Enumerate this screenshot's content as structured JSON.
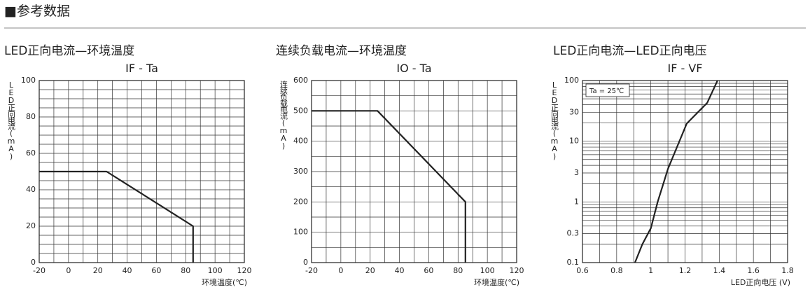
{
  "header": {
    "title": "■参考数据"
  },
  "chart_data": [
    {
      "type": "line",
      "title": "LED正向电流—环境温度",
      "subtitle": "IF - Ta",
      "ylabel": "LED正向电流(mA)",
      "xlabel": "环境温度(℃)",
      "x": [
        -20,
        26,
        85,
        85
      ],
      "series": [
        {
          "color": "#222222",
          "values": [
            50,
            50,
            20,
            0
          ]
        }
      ],
      "xlim": [
        -20,
        120
      ],
      "ylim": [
        0,
        100
      ],
      "xticks": [
        -20,
        0,
        20,
        40,
        60,
        80,
        100,
        120
      ],
      "yticks": [
        0,
        20,
        40,
        60,
        80,
        100
      ],
      "grid": true,
      "xgrid": [
        -10,
        10,
        30,
        50,
        70,
        90,
        110
      ],
      "ygrid": [
        5,
        10,
        15,
        25,
        30,
        35,
        45,
        50,
        55,
        65,
        70,
        75,
        85,
        90,
        95
      ]
    },
    {
      "type": "line",
      "title": "连续负载电流—环境温度",
      "subtitle": "IO - Ta",
      "ylabel": "连续负载电流(mA)",
      "xlabel": "环境温度(℃)",
      "x": [
        -20,
        25,
        85,
        85
      ],
      "series": [
        {
          "color": "#222222",
          "values": [
            500,
            500,
            200,
            0
          ]
        }
      ],
      "xlim": [
        -20,
        120
      ],
      "ylim": [
        0,
        600
      ],
      "xticks": [
        -20,
        0,
        20,
        40,
        60,
        80,
        100,
        120
      ],
      "yticks": [
        0,
        100,
        200,
        300,
        400,
        500,
        600
      ],
      "grid": true,
      "xgrid": [
        -10,
        10,
        30,
        50,
        70,
        90,
        110
      ],
      "ygrid": [
        50,
        150,
        250,
        350,
        450,
        550
      ]
    },
    {
      "type": "line",
      "title": "LED正向电流—LED正向电压",
      "subtitle": "IF - VF",
      "ylabel": "LED正向电流(mA)",
      "xlabel": "LED正向电压 (V)",
      "annotation": "Ta = 25℃",
      "x": [
        0.907,
        0.95,
        1.0,
        1.04,
        1.1,
        1.21,
        1.33,
        1.39
      ],
      "series": [
        {
          "color": "#222222",
          "values": [
            0.1,
            0.2,
            0.37,
            1,
            3.5,
            19.5,
            43,
            100
          ]
        }
      ],
      "xlim": [
        0.6,
        1.8
      ],
      "ylim": [
        0.1,
        100
      ],
      "log_y": true,
      "xticks": [
        0.6,
        0.8,
        1,
        1.2,
        1.4,
        1.6,
        1.8
      ],
      "yticks": [
        0.1,
        0.3,
        1,
        3,
        10,
        30,
        100
      ],
      "grid": true,
      "xgrid": [
        0.7,
        0.9,
        1.1,
        1.3,
        1.5,
        1.7
      ],
      "ygrid": [
        0.2,
        0.4,
        0.5,
        0.6,
        0.7,
        0.8,
        0.9,
        2,
        4,
        5,
        6,
        7,
        8,
        9,
        20,
        40,
        50,
        60,
        70,
        80,
        90
      ]
    }
  ]
}
